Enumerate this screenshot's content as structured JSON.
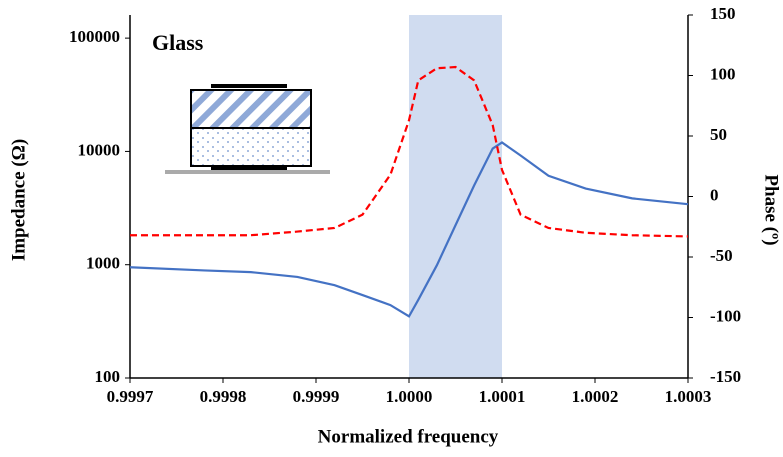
{
  "chart_data": {
    "type": "line",
    "annotation": "Glass",
    "x_label": "Normalized frequency",
    "y_label": "Impedance (Ω)",
    "y2_label": "Phase (º)",
    "x": [
      0.9997,
      0.99978,
      0.99983,
      0.99988,
      0.99992,
      0.99995,
      0.99998,
      1.0,
      1.00001,
      1.00003,
      1.00005,
      1.00007,
      1.00009,
      1.0001,
      1.00012,
      1.00015,
      1.00019,
      1.00024,
      1.0003
    ],
    "series": [
      {
        "color": "#4472c4",
        "dashed": false,
        "values": [
          950,
          890,
          860,
          780,
          660,
          540,
          440,
          350,
          490,
          990,
          2230,
          5000,
          10600,
          12000,
          9200,
          6100,
          4700,
          3850,
          3420
        ]
      },
      {
        "color": "#ff0000",
        "dashed": true,
        "axis": "y2",
        "values": [
          -32,
          -32,
          -32,
          -29,
          -26,
          -15,
          18,
          63,
          96,
          106,
          107,
          96,
          59,
          22,
          -15,
          -26,
          -30,
          -32,
          -33
        ]
      }
    ],
    "xlim": [
      0.9997,
      1.0003
    ],
    "xticks": [
      0.9997,
      0.9998,
      0.9999,
      {
        "value": 1.0,
        "label": "1.0000"
      },
      1.0001,
      1.0002,
      1.0003
    ],
    "ylim": [
      100,
      160000
    ],
    "yscale": "log",
    "yticks": [
      100,
      1000,
      10000,
      100000
    ],
    "y2lim": [
      -150,
      150
    ],
    "y2ticks": [
      -150,
      -100,
      -50,
      0,
      50,
      100,
      150
    ],
    "shaded_region": {
      "xlim": [
        1.0,
        1.0001
      ],
      "color": "#d0dcf0"
    }
  }
}
